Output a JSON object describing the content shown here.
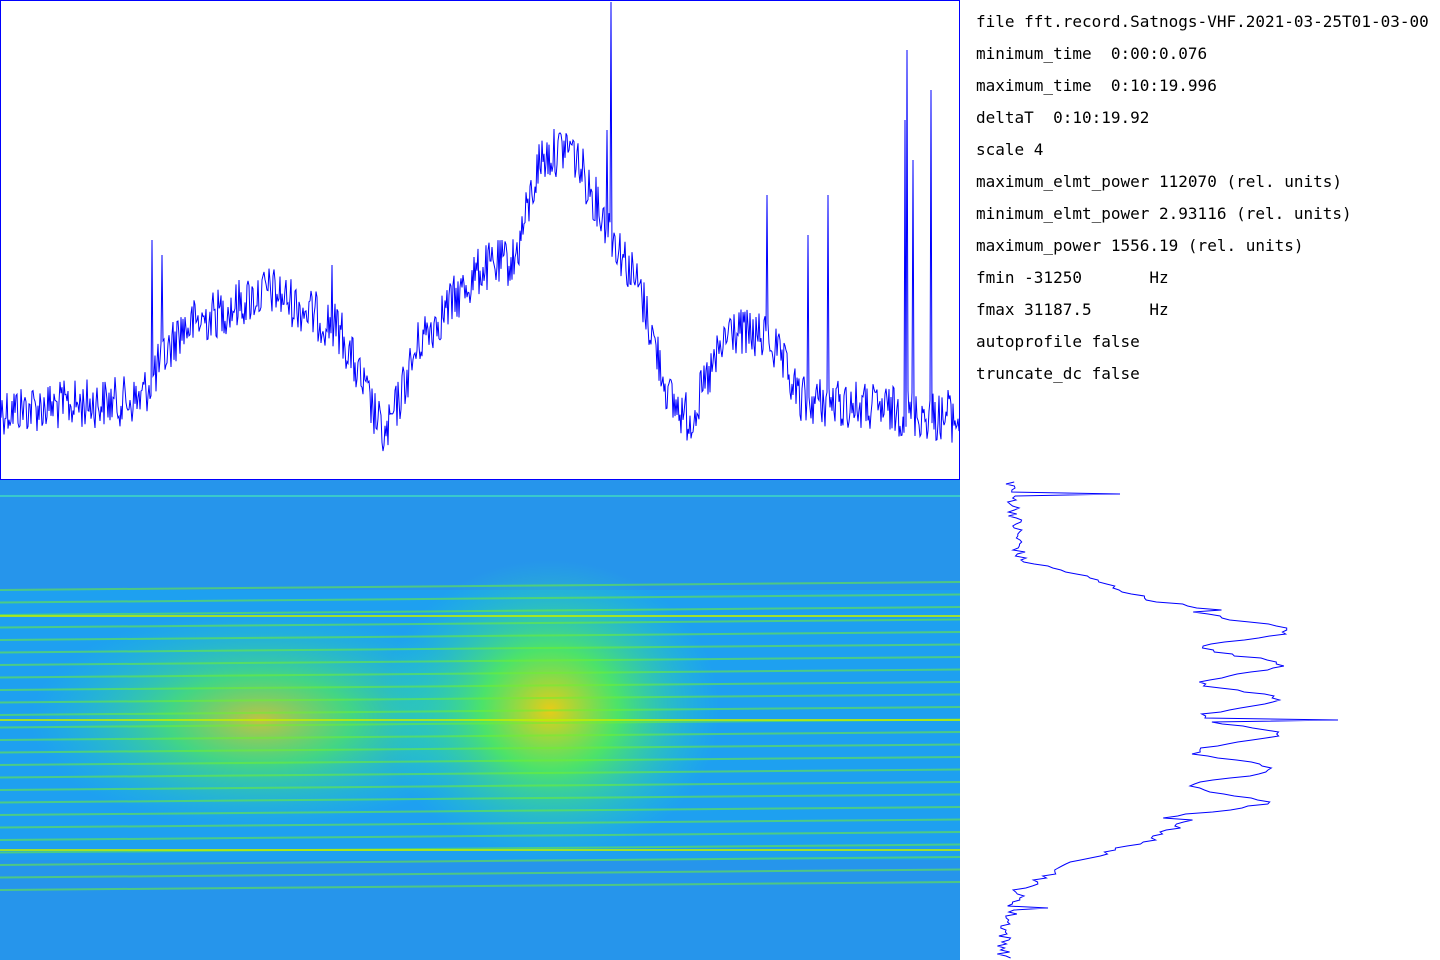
{
  "info": {
    "lines": [
      "file fft.record.Satnogs-VHF.2021-03-25T01-03-00",
      "minimum_time  0:00:0.076",
      "maximum_time  0:10:19.996",
      "deltaT  0:10:19.92",
      "scale 4",
      "maximum_elmt_power 112070 (rel. units)",
      "minimum_elmt_power 2.93116 (rel. units)",
      "maximum_power 1556.19 (rel. units)",
      "fmin -31250       Hz",
      "fmax 31187.5      Hz",
      "autoprofile false",
      "truncate_dc false"
    ]
  }
}
